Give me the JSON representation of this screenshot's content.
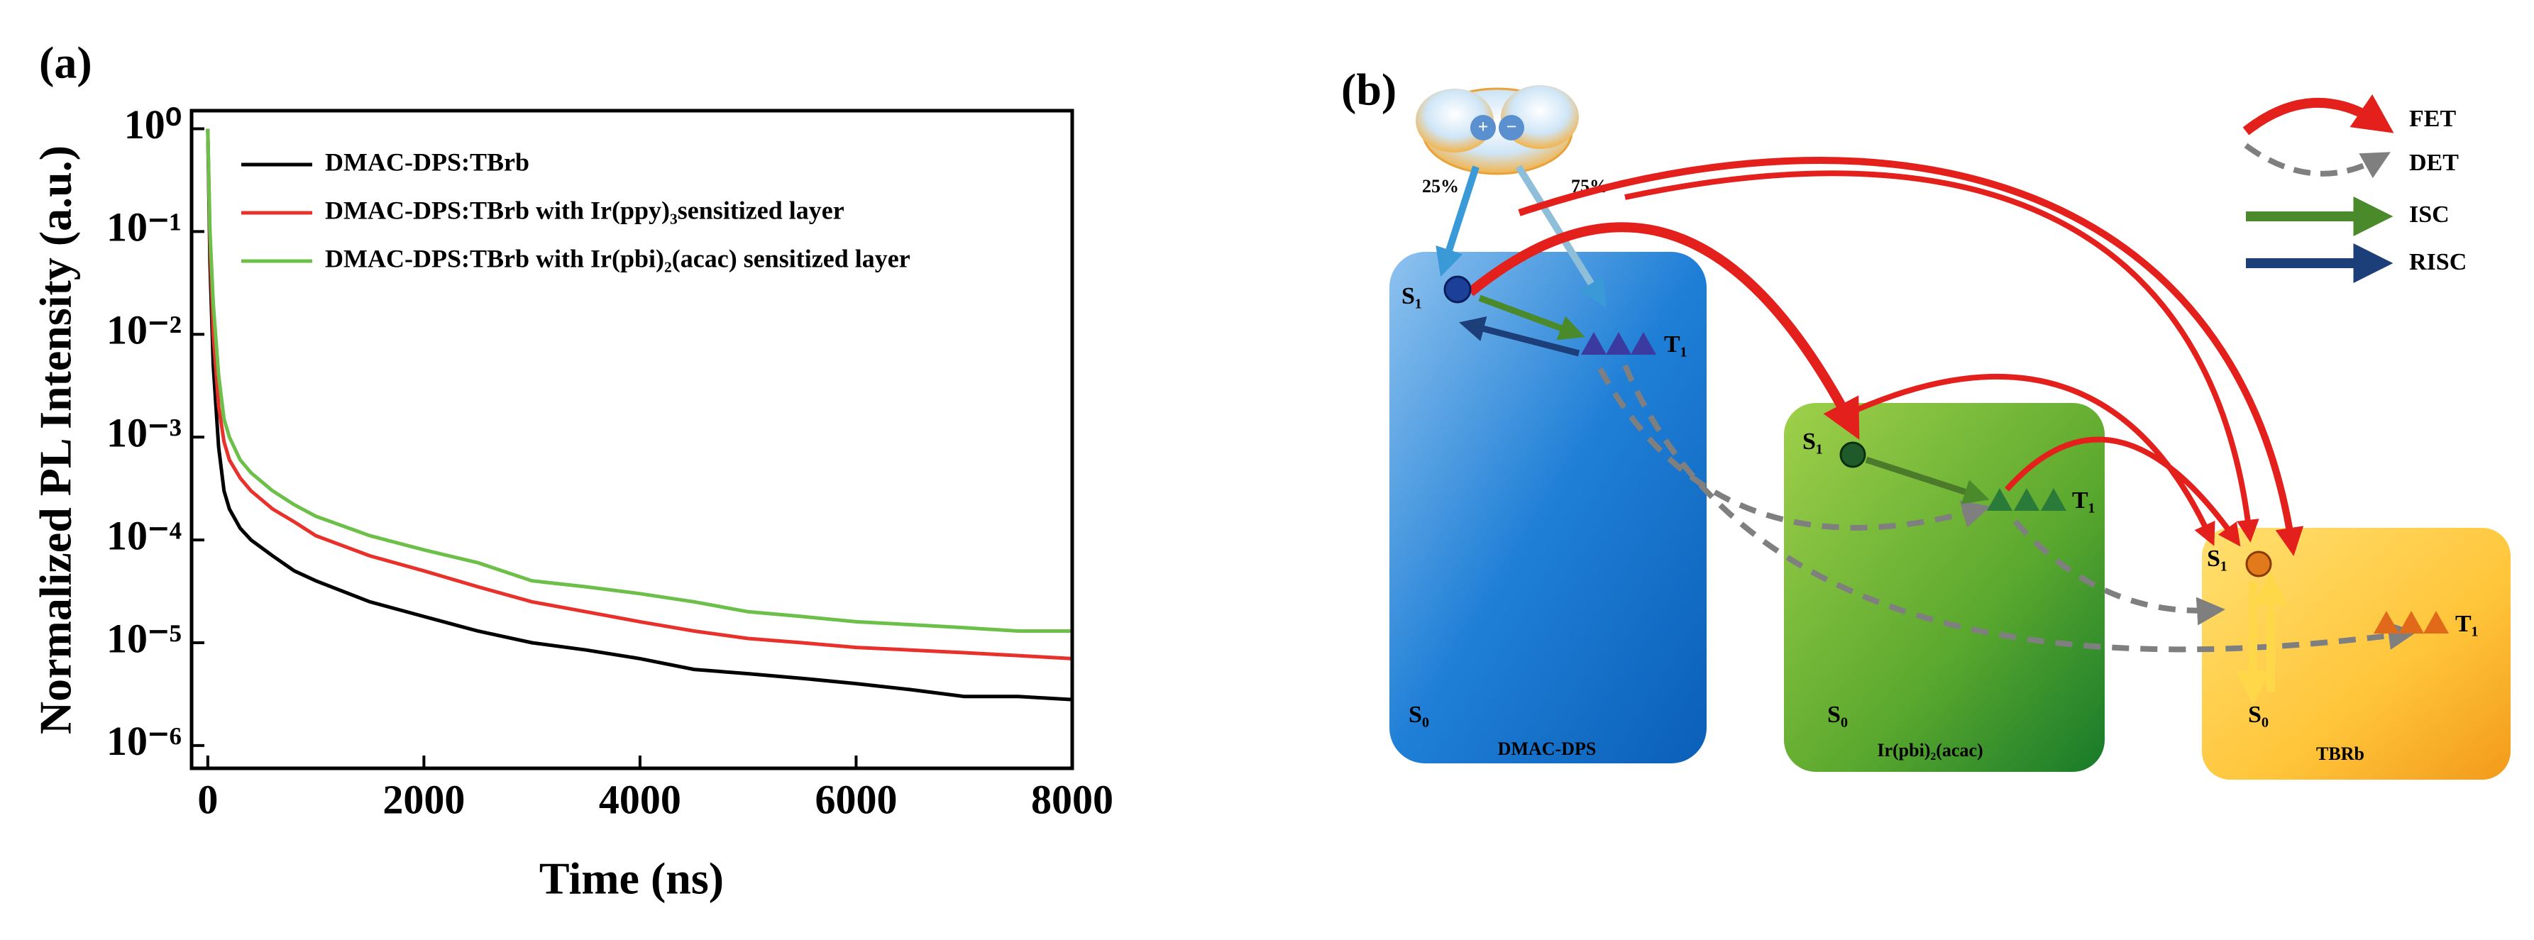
{
  "chart_data": {
    "type": "line",
    "panel": "(a)",
    "xlabel": "Time (ns)",
    "ylabel": "Normalized PL Intensity (a.u.)",
    "log_y": true,
    "xlim": [
      -150,
      8000
    ],
    "ylim": [
      6e-07,
      1.5
    ],
    "xticks": [
      0,
      2000,
      4000,
      6000,
      8000
    ],
    "yticks": [
      {
        "value": 1,
        "label": "10⁰"
      },
      {
        "value": 0.1,
        "label": "10⁻¹"
      },
      {
        "value": 0.01,
        "label": "10⁻²"
      },
      {
        "value": 0.001,
        "label": "10⁻³"
      },
      {
        "value": 0.0001,
        "label": "10⁻⁴"
      },
      {
        "value": 1e-05,
        "label": "10⁻⁵"
      },
      {
        "value": 1e-06,
        "label": "10⁻⁶"
      }
    ],
    "x": [
      0,
      20,
      50,
      100,
      150,
      200,
      300,
      400,
      600,
      800,
      1000,
      1500,
      2000,
      2500,
      3000,
      3500,
      4000,
      4500,
      5000,
      5500,
      6000,
      6500,
      7000,
      7500,
      8000
    ],
    "series": [
      {
        "name": "DMAC-DPS:TBrb",
        "color": "#000000",
        "values": [
          1,
          0.05,
          0.005,
          0.0008,
          0.0003,
          0.0002,
          0.00013,
          0.0001,
          7e-05,
          5e-05,
          4e-05,
          2.5e-05,
          1.8e-05,
          1.3e-05,
          1e-05,
          8.5e-06,
          7e-06,
          5.5e-06,
          5e-06,
          4.5e-06,
          4e-06,
          3.5e-06,
          3e-06,
          3e-06,
          2.8e-06
        ]
      },
      {
        "name": "DMAC-DPS:TBrb with Ir(ppy)₃sensitized layer",
        "color": "#e8312a",
        "values": [
          1,
          0.08,
          0.01,
          0.002,
          0.0009,
          0.0006,
          0.0004,
          0.0003,
          0.0002,
          0.00015,
          0.00011,
          7e-05,
          5e-05,
          3.5e-05,
          2.5e-05,
          2e-05,
          1.6e-05,
          1.3e-05,
          1.1e-05,
          1e-05,
          9e-06,
          8.5e-06,
          8e-06,
          7.5e-06,
          7e-06
        ]
      },
      {
        "name": "DMAC-DPS:TBrb with Ir(pbi)₂(acac) sensitized layer",
        "color": "#6cc04a",
        "values": [
          1,
          0.1,
          0.02,
          0.004,
          0.0015,
          0.001,
          0.0006,
          0.00045,
          0.0003,
          0.00022,
          0.00017,
          0.00011,
          8e-05,
          6e-05,
          4e-05,
          3.5e-05,
          3e-05,
          2.5e-05,
          2e-05,
          1.8e-05,
          1.6e-05,
          1.5e-05,
          1.4e-05,
          1.3e-05,
          1.3e-05
        ]
      }
    ]
  },
  "diagram": {
    "panel": "(b)",
    "singlet_share": "25%",
    "triplet_share": "75%",
    "legend": [
      "FET",
      "DET",
      "ISC",
      "RISC"
    ],
    "boxes": [
      {
        "label": "DMAC-DPS",
        "s1": "S₁",
        "t1": "T₁",
        "s0": "S₀"
      },
      {
        "label": "Ir(pbi)₂(acac)",
        "s1": "S₁",
        "t1": "T₁",
        "s0": "S₀"
      },
      {
        "label": "TBRb",
        "s1": "S₁",
        "t1": "T₁",
        "s0": "S₀"
      }
    ]
  }
}
